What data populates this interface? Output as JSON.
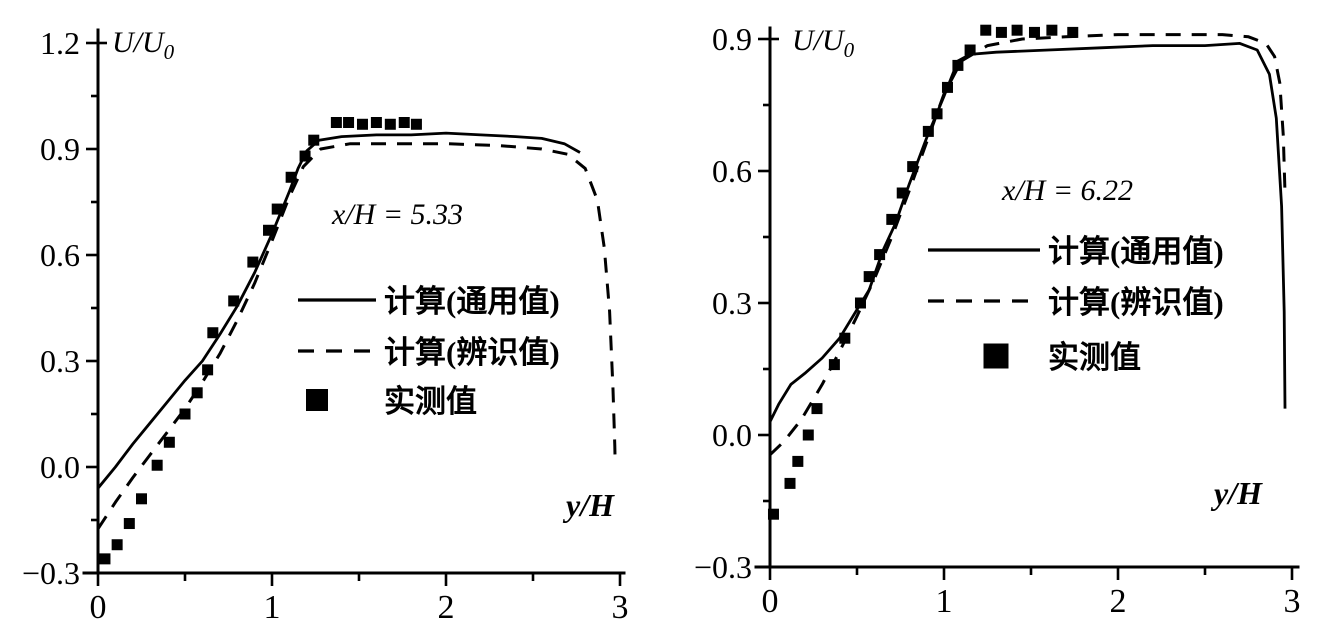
{
  "page": {
    "background": "#ffffff",
    "ink": "#000000",
    "description_labels": {
      "left_annotation": "x/H = 5.33",
      "right_annotation": "x/H = 6.22"
    }
  },
  "chart_data": [
    {
      "type": "line",
      "panel": "left",
      "annotation": "x/H = 5.33",
      "ylabel": "U/U",
      "ylabel_sub": "0",
      "xlabel": "y/H",
      "xlim": [
        0,
        3
      ],
      "ylim": [
        -0.3,
        1.2
      ],
      "xticks": [
        0,
        1,
        2,
        3
      ],
      "xtick_labels": [
        "0",
        "1",
        "2",
        "3"
      ],
      "yticks": [
        -0.3,
        0.0,
        0.3,
        0.6,
        0.9,
        1.2
      ],
      "ytick_labels": [
        "−0.3",
        "0.0",
        "0.3",
        "0.6",
        "0.9",
        "1.2"
      ],
      "x_minor_ticks": [
        0.5,
        1.5,
        2.5
      ],
      "y_minor_ticks": [
        -0.15,
        0.15,
        0.45,
        0.75,
        1.05
      ],
      "grid": false,
      "legend_position": "inside-right",
      "series": [
        {
          "name": "计算(通用值)",
          "style": "solid",
          "points": [
            [
              0,
              -0.06
            ],
            [
              0.1,
              0.0
            ],
            [
              0.2,
              0.065
            ],
            [
              0.3,
              0.125
            ],
            [
              0.4,
              0.185
            ],
            [
              0.5,
              0.245
            ],
            [
              0.6,
              0.3
            ],
            [
              0.7,
              0.375
            ],
            [
              0.8,
              0.455
            ],
            [
              0.9,
              0.55
            ],
            [
              1.0,
              0.66
            ],
            [
              1.05,
              0.72
            ],
            [
              1.1,
              0.78
            ],
            [
              1.15,
              0.845
            ],
            [
              1.2,
              0.895
            ],
            [
              1.27,
              0.925
            ],
            [
              1.4,
              0.935
            ],
            [
              1.6,
              0.94
            ],
            [
              1.8,
              0.94
            ],
            [
              2.0,
              0.945
            ],
            [
              2.2,
              0.94
            ],
            [
              2.4,
              0.935
            ],
            [
              2.55,
              0.93
            ],
            [
              2.68,
              0.915
            ],
            [
              2.77,
              0.89
            ]
          ]
        },
        {
          "name": "计算(辨识值)",
          "style": "dashed",
          "points": [
            [
              0,
              -0.175
            ],
            [
              0.1,
              -0.1
            ],
            [
              0.2,
              -0.03
            ],
            [
              0.3,
              0.035
            ],
            [
              0.4,
              0.1
            ],
            [
              0.5,
              0.165
            ],
            [
              0.6,
              0.24
            ],
            [
              0.7,
              0.32
            ],
            [
              0.8,
              0.415
            ],
            [
              0.9,
              0.52
            ],
            [
              1.0,
              0.64
            ],
            [
              1.1,
              0.765
            ],
            [
              1.18,
              0.85
            ],
            [
              1.28,
              0.9
            ],
            [
              1.45,
              0.915
            ],
            [
              1.7,
              0.915
            ],
            [
              2.0,
              0.915
            ],
            [
              2.3,
              0.91
            ],
            [
              2.55,
              0.9
            ],
            [
              2.7,
              0.885
            ],
            [
              2.8,
              0.845
            ],
            [
              2.87,
              0.755
            ],
            [
              2.91,
              0.62
            ],
            [
              2.94,
              0.44
            ],
            [
              2.96,
              0.22
            ],
            [
              2.97,
              0.06
            ],
            [
              2.972,
              0.02
            ]
          ]
        },
        {
          "name": "实测值",
          "style": "scatter",
          "points": [
            [
              0.04,
              -0.26
            ],
            [
              0.11,
              -0.22
            ],
            [
              0.18,
              -0.16
            ],
            [
              0.25,
              -0.09
            ],
            [
              0.34,
              0.005
            ],
            [
              0.41,
              0.07
            ],
            [
              0.5,
              0.15
            ],
            [
              0.57,
              0.21
            ],
            [
              0.63,
              0.275
            ],
            [
              0.66,
              0.38
            ],
            [
              0.78,
              0.47
            ],
            [
              0.89,
              0.58
            ],
            [
              0.98,
              0.67
            ],
            [
              1.03,
              0.73
            ],
            [
              1.11,
              0.82
            ],
            [
              1.19,
              0.88
            ],
            [
              1.24,
              0.925
            ],
            [
              1.37,
              0.975
            ],
            [
              1.44,
              0.975
            ],
            [
              1.52,
              0.97
            ],
            [
              1.6,
              0.975
            ],
            [
              1.68,
              0.97
            ],
            [
              1.76,
              0.975
            ],
            [
              1.83,
              0.97
            ]
          ]
        }
      ]
    },
    {
      "type": "line",
      "panel": "right",
      "annotation": "x/H = 6.22",
      "ylabel": "U/U",
      "ylabel_sub": "0",
      "xlabel": "y/H",
      "xlim": [
        0,
        3
      ],
      "ylim": [
        -0.3,
        0.9
      ],
      "xticks": [
        0,
        1,
        2,
        3
      ],
      "xtick_labels": [
        "0",
        "1",
        "2",
        "3"
      ],
      "yticks": [
        -0.3,
        0.0,
        0.3,
        0.6,
        0.9
      ],
      "ytick_labels": [
        "−0.3",
        "0.0",
        "0.3",
        "0.6",
        "0.9"
      ],
      "x_minor_ticks": [
        0.5,
        1.5,
        2.5
      ],
      "y_minor_ticks": [
        -0.15,
        0.15,
        0.45,
        0.75
      ],
      "grid": false,
      "legend_position": "inside-right",
      "series": [
        {
          "name": "计算(通用值)",
          "style": "solid",
          "points": [
            [
              0,
              0.03
            ],
            [
              0.05,
              0.07
            ],
            [
              0.12,
              0.115
            ],
            [
              0.2,
              0.14
            ],
            [
              0.3,
              0.175
            ],
            [
              0.4,
              0.22
            ],
            [
              0.5,
              0.285
            ],
            [
              0.57,
              0.33
            ],
            [
              0.65,
              0.42
            ],
            [
              0.72,
              0.48
            ],
            [
              0.8,
              0.57
            ],
            [
              0.9,
              0.675
            ],
            [
              1.0,
              0.77
            ],
            [
              1.08,
              0.85
            ],
            [
              1.15,
              0.865
            ],
            [
              1.3,
              0.87
            ],
            [
              1.6,
              0.875
            ],
            [
              1.9,
              0.88
            ],
            [
              2.2,
              0.885
            ],
            [
              2.5,
              0.885
            ],
            [
              2.7,
              0.89
            ],
            [
              2.8,
              0.875
            ],
            [
              2.87,
              0.82
            ],
            [
              2.91,
              0.72
            ],
            [
              2.94,
              0.52
            ],
            [
              2.955,
              0.28
            ],
            [
              2.96,
              0.06
            ]
          ]
        },
        {
          "name": "计算(辨识值)",
          "style": "dashed",
          "points": [
            [
              0,
              -0.045
            ],
            [
              0.08,
              -0.015
            ],
            [
              0.18,
              0.035
            ],
            [
              0.3,
              0.115
            ],
            [
              0.4,
              0.19
            ],
            [
              0.5,
              0.27
            ],
            [
              0.6,
              0.355
            ],
            [
              0.7,
              0.45
            ],
            [
              0.8,
              0.555
            ],
            [
              0.9,
              0.665
            ],
            [
              1.0,
              0.775
            ],
            [
              1.1,
              0.85
            ],
            [
              1.25,
              0.885
            ],
            [
              1.45,
              0.9
            ],
            [
              1.7,
              0.905
            ],
            [
              2.0,
              0.91
            ],
            [
              2.3,
              0.91
            ],
            [
              2.6,
              0.91
            ],
            [
              2.75,
              0.905
            ],
            [
              2.85,
              0.89
            ],
            [
              2.9,
              0.86
            ],
            [
              2.93,
              0.8
            ],
            [
              2.95,
              0.68
            ],
            [
              2.96,
              0.55
            ]
          ]
        },
        {
          "name": "实测值",
          "style": "scatter",
          "points": [
            [
              0.02,
              -0.18
            ],
            [
              0.115,
              -0.11
            ],
            [
              0.16,
              -0.06
            ],
            [
              0.22,
              0.0
            ],
            [
              0.27,
              0.06
            ],
            [
              0.37,
              0.16
            ],
            [
              0.43,
              0.22
            ],
            [
              0.52,
              0.3
            ],
            [
              0.57,
              0.36
            ],
            [
              0.63,
              0.41
            ],
            [
              0.7,
              0.49
            ],
            [
              0.76,
              0.55
            ],
            [
              0.82,
              0.61
            ],
            [
              0.91,
              0.69
            ],
            [
              0.96,
              0.73
            ],
            [
              1.02,
              0.79
            ],
            [
              1.08,
              0.84
            ],
            [
              1.15,
              0.875
            ],
            [
              1.24,
              0.92
            ],
            [
              1.33,
              0.915
            ],
            [
              1.42,
              0.92
            ],
            [
              1.52,
              0.915
            ],
            [
              1.62,
              0.92
            ],
            [
              1.74,
              0.915
            ]
          ]
        }
      ]
    }
  ]
}
